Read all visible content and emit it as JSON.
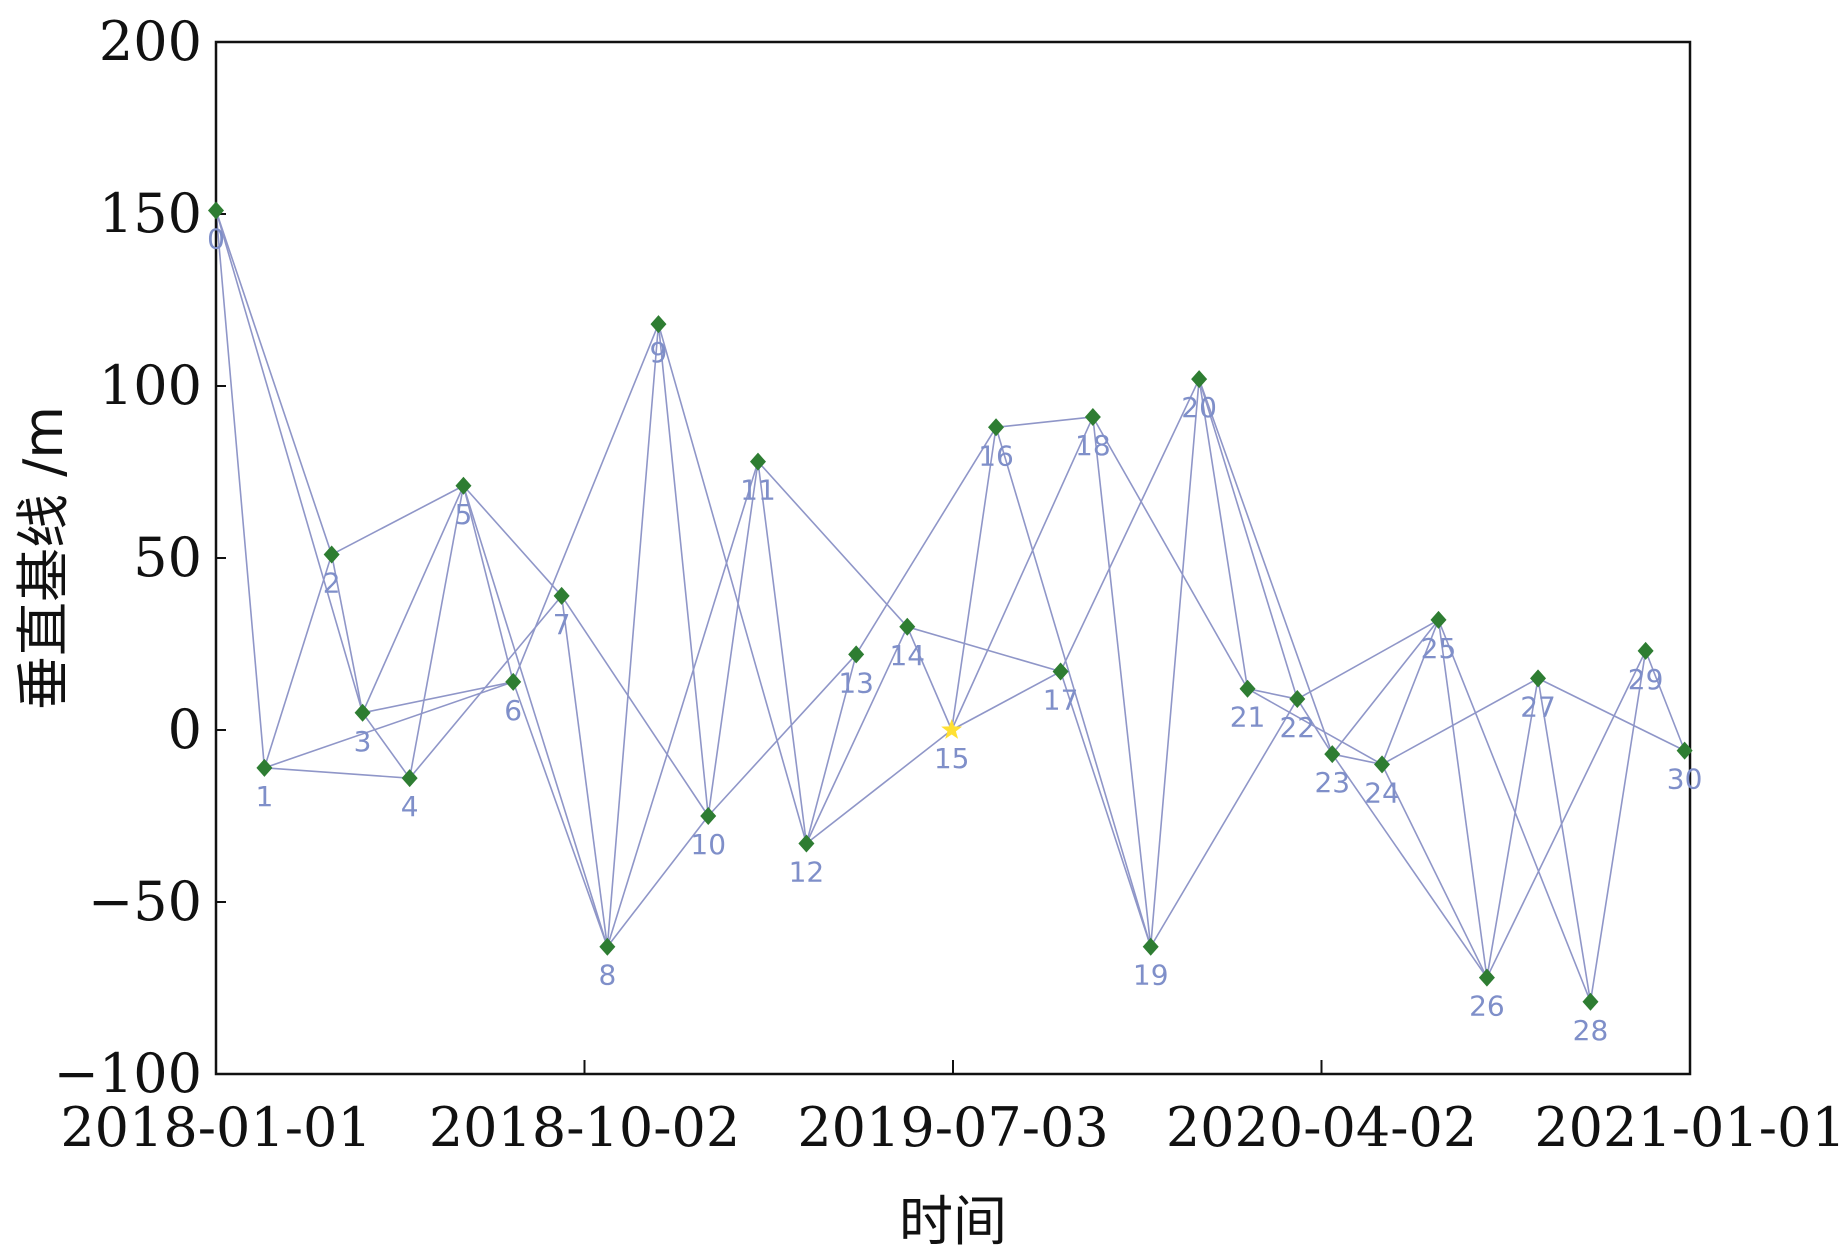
{
  "chart_data": {
    "type": "scatter",
    "title": "",
    "xlabel": "时间",
    "ylabel": "垂直基线 /m",
    "ylim": [
      -100,
      200
    ],
    "xlim": [
      "2018-01-01",
      "2021-01-01"
    ],
    "grid": false,
    "y_ticks": [
      {
        "value": -100,
        "label": "−100"
      },
      {
        "value": -50,
        "label": "−50"
      },
      {
        "value": 0,
        "label": "0"
      },
      {
        "value": 50,
        "label": "50"
      },
      {
        "value": 100,
        "label": "100"
      },
      {
        "value": 150,
        "label": "150"
      },
      {
        "value": 200,
        "label": "200"
      }
    ],
    "x_ticks": [
      {
        "date": "2018-01-01",
        "label": "2018-01-01"
      },
      {
        "date": "2018-10-02",
        "label": "2018-10-02"
      },
      {
        "date": "2019-07-03",
        "label": "2019-07-03"
      },
      {
        "date": "2020-04-02",
        "label": "2020-04-02"
      },
      {
        "date": "2021-01-01",
        "label": "2021-01-01"
      }
    ],
    "colors": {
      "point": "#2e7d32",
      "reference_point": "#ffe033",
      "connection": "#8f96c8",
      "point_label": "#7f8fc9",
      "axis": "#111111"
    },
    "reference_point_id": 15,
    "points": [
      {
        "id": 0,
        "label": "0",
        "date": "2018-01-01",
        "y": 151
      },
      {
        "id": 1,
        "label": "1",
        "date": "2018-02-06",
        "y": -11
      },
      {
        "id": 2,
        "label": "2",
        "date": "2018-03-28",
        "y": 51
      },
      {
        "id": 3,
        "label": "3",
        "date": "2018-04-20",
        "y": 5
      },
      {
        "id": 4,
        "label": "4",
        "date": "2018-05-25",
        "y": -14
      },
      {
        "id": 5,
        "label": "5",
        "date": "2018-07-04",
        "y": 71
      },
      {
        "id": 6,
        "label": "6",
        "date": "2018-08-10",
        "y": 14
      },
      {
        "id": 7,
        "label": "7",
        "date": "2018-09-15",
        "y": 39
      },
      {
        "id": 8,
        "label": "8",
        "date": "2018-10-19",
        "y": -63
      },
      {
        "id": 9,
        "label": "9",
        "date": "2018-11-26",
        "y": 118
      },
      {
        "id": 10,
        "label": "10",
        "date": "2019-01-02",
        "y": -25
      },
      {
        "id": 11,
        "label": "11",
        "date": "2019-02-08",
        "y": 78
      },
      {
        "id": 12,
        "label": "12",
        "date": "2019-03-16",
        "y": -33
      },
      {
        "id": 13,
        "label": "13",
        "date": "2019-04-22",
        "y": 22
      },
      {
        "id": 14,
        "label": "14",
        "date": "2019-05-30",
        "y": 30
      },
      {
        "id": 15,
        "label": "15",
        "date": "2019-07-02",
        "y": 0
      },
      {
        "id": 16,
        "label": "16",
        "date": "2019-08-04",
        "y": 88
      },
      {
        "id": 17,
        "label": "17",
        "date": "2019-09-21",
        "y": 17
      },
      {
        "id": 18,
        "label": "18",
        "date": "2019-10-15",
        "y": 91
      },
      {
        "id": 19,
        "label": "19",
        "date": "2019-11-27",
        "y": -63
      },
      {
        "id": 20,
        "label": "20",
        "date": "2020-01-02",
        "y": 102
      },
      {
        "id": 21,
        "label": "21",
        "date": "2020-02-07",
        "y": 12
      },
      {
        "id": 22,
        "label": "22",
        "date": "2020-03-15",
        "y": 9
      },
      {
        "id": 23,
        "label": "23",
        "date": "2020-04-10",
        "y": -7
      },
      {
        "id": 24,
        "label": "24",
        "date": "2020-05-17",
        "y": -10
      },
      {
        "id": 25,
        "label": "25",
        "date": "2020-06-28",
        "y": 32
      },
      {
        "id": 26,
        "label": "26",
        "date": "2020-08-03",
        "y": -72
      },
      {
        "id": 27,
        "label": "27",
        "date": "2020-09-10",
        "y": 15
      },
      {
        "id": 28,
        "label": "28",
        "date": "2020-10-19",
        "y": -79
      },
      {
        "id": 29,
        "label": "29",
        "date": "2020-11-29",
        "y": 23
      },
      {
        "id": 30,
        "label": "30",
        "date": "2020-12-28",
        "y": -6
      }
    ],
    "connections": [
      [
        0,
        1
      ],
      [
        0,
        2
      ],
      [
        0,
        3
      ],
      [
        1,
        2
      ],
      [
        1,
        4
      ],
      [
        1,
        6
      ],
      [
        2,
        3
      ],
      [
        2,
        5
      ],
      [
        3,
        4
      ],
      [
        3,
        5
      ],
      [
        3,
        6
      ],
      [
        4,
        5
      ],
      [
        4,
        7
      ],
      [
        5,
        6
      ],
      [
        5,
        7
      ],
      [
        5,
        8
      ],
      [
        6,
        8
      ],
      [
        6,
        9
      ],
      [
        7,
        8
      ],
      [
        7,
        10
      ],
      [
        8,
        9
      ],
      [
        8,
        10
      ],
      [
        8,
        11
      ],
      [
        9,
        10
      ],
      [
        9,
        12
      ],
      [
        10,
        11
      ],
      [
        10,
        13
      ],
      [
        11,
        12
      ],
      [
        11,
        14
      ],
      [
        12,
        13
      ],
      [
        12,
        14
      ],
      [
        12,
        15
      ],
      [
        13,
        16
      ],
      [
        14,
        15
      ],
      [
        14,
        17
      ],
      [
        15,
        16
      ],
      [
        15,
        17
      ],
      [
        15,
        18
      ],
      [
        16,
        18
      ],
      [
        16,
        19
      ],
      [
        17,
        19
      ],
      [
        17,
        20
      ],
      [
        18,
        19
      ],
      [
        18,
        21
      ],
      [
        19,
        20
      ],
      [
        19,
        22
      ],
      [
        20,
        21
      ],
      [
        20,
        22
      ],
      [
        20,
        23
      ],
      [
        21,
        22
      ],
      [
        21,
        24
      ],
      [
        22,
        23
      ],
      [
        22,
        25
      ],
      [
        23,
        24
      ],
      [
        23,
        25
      ],
      [
        23,
        26
      ],
      [
        24,
        25
      ],
      [
        24,
        26
      ],
      [
        24,
        27
      ],
      [
        25,
        26
      ],
      [
        25,
        28
      ],
      [
        26,
        27
      ],
      [
        26,
        29
      ],
      [
        27,
        28
      ],
      [
        27,
        30
      ],
      [
        28,
        29
      ],
      [
        29,
        30
      ]
    ]
  }
}
